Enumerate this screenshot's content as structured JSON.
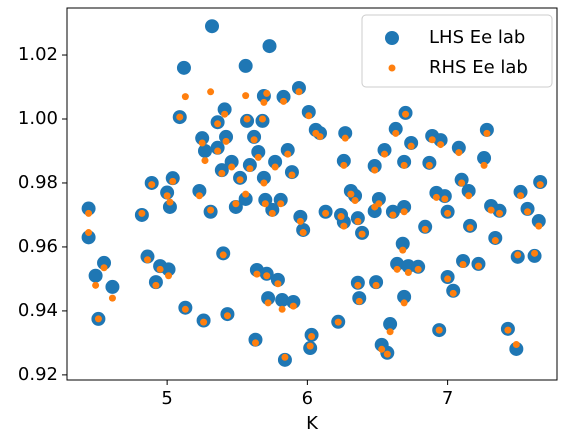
{
  "chart_data": {
    "type": "scatter",
    "x_label": "K",
    "xlim": [
      4.286,
      7.78
    ],
    "ylim": [
      0.9184,
      1.0347
    ],
    "xticks": [
      5,
      6,
      7
    ],
    "yticks": [
      0.92,
      0.94,
      0.96,
      0.98,
      {
        "value": 1.0,
        "label": "1.00"
      },
      1.02
    ],
    "legend": "upper right",
    "series": [
      {
        "name": "LHS Ee lab",
        "color": "#1f77b4",
        "size": 7,
        "x": [
          4.44,
          4.44,
          4.49,
          4.51,
          4.55,
          4.61,
          4.82,
          4.86,
          4.89,
          4.92,
          4.95,
          5.0,
          5.01,
          5.02,
          5.04,
          5.09,
          5.12,
          5.13,
          5.23,
          5.25,
          5.26,
          5.27,
          5.31,
          5.32,
          5.36,
          5.36,
          5.39,
          5.4,
          5.41,
          5.43,
          5.42,
          5.46,
          5.49,
          5.52,
          5.56,
          5.56,
          5.57,
          5.59,
          5.62,
          5.64,
          5.63,
          5.65,
          5.68,
          5.69,
          5.69,
          5.7,
          5.71,
          5.72,
          5.73,
          5.75,
          5.77,
          5.79,
          5.81,
          5.82,
          5.83,
          5.84,
          5.86,
          5.89,
          5.9,
          5.94,
          5.95,
          5.97,
          6.01,
          6.03,
          6.02,
          6.06,
          6.09,
          6.13,
          6.22,
          6.24,
          6.26,
          6.26,
          6.27,
          6.31,
          6.34,
          6.36,
          6.36,
          6.37,
          6.39,
          6.48,
          6.49,
          6.48,
          6.51,
          6.53,
          6.55,
          6.57,
          6.59,
          6.61,
          6.63,
          6.64,
          6.68,
          6.69,
          6.69,
          6.7,
          6.69,
          6.72,
          6.74,
          6.79,
          6.84,
          6.87,
          6.89,
          6.92,
          6.94,
          6.95,
          6.98,
          7.0,
          7.0,
          7.04,
          7.08,
          7.1,
          7.11,
          7.15,
          7.16,
          7.22,
          7.26,
          7.28,
          7.31,
          7.34,
          7.37,
          7.43,
          7.49,
          7.5,
          7.52,
          7.57,
          7.62,
          7.65,
          7.66
        ],
        "values": [
          0.972,
          0.963,
          0.951,
          0.9375,
          0.955,
          0.9475,
          0.97,
          0.957,
          0.98,
          0.949,
          0.954,
          0.977,
          0.953,
          0.9725,
          0.9815,
          1.0006,
          1.016,
          0.941,
          0.9775,
          0.994,
          0.937,
          0.99,
          0.971,
          1.029,
          0.999,
          0.991,
          0.984,
          0.958,
          1.003,
          0.939,
          0.9944,
          0.9866,
          0.9725,
          0.9816,
          1.0166,
          0.975,
          0.9994,
          0.9856,
          0.9944,
          0.9528,
          0.931,
          0.9897,
          0.9994,
          1.0072,
          0.9816,
          0.9747,
          0.9516,
          0.944,
          1.0228,
          0.9716,
          0.9866,
          0.9497,
          0.9747,
          0.9434,
          1.0069,
          0.9247,
          0.9903,
          0.9834,
          0.9428,
          1.0097,
          0.9694,
          0.9653,
          1.0022,
          0.9325,
          0.9284,
          0.9966,
          0.9956,
          0.971,
          0.9366,
          0.97,
          0.9869,
          0.9678,
          0.9956,
          0.9775,
          0.976,
          0.9488,
          0.969,
          0.944,
          0.9644,
          0.9712,
          0.949,
          0.9853,
          0.975,
          0.9294,
          0.9903,
          0.9269,
          0.9359,
          0.971,
          0.9969,
          0.9547,
          0.961,
          0.9725,
          0.9866,
          1.0019,
          0.9444,
          0.954,
          0.9925,
          0.9538,
          0.9663,
          0.9863,
          0.9947,
          0.9769,
          0.934,
          0.9934,
          0.9759,
          0.971,
          0.9506,
          0.9463,
          0.991,
          0.981,
          0.9556,
          0.9775,
          0.9666,
          0.9547,
          0.9878,
          0.9966,
          0.9728,
          0.9628,
          0.9713,
          0.9344,
          0.9281,
          0.9569,
          0.9772,
          0.9719,
          0.9572,
          0.9681,
          0.9803
        ]
      },
      {
        "name": "RHS Ee lab",
        "color": "#ff7f0e",
        "size": 3.5,
        "x": [
          4.44,
          4.44,
          4.49,
          4.51,
          4.55,
          4.61,
          4.82,
          4.86,
          4.89,
          4.92,
          4.95,
          5.0,
          5.01,
          5.02,
          5.04,
          5.09,
          5.13,
          5.13,
          5.23,
          5.25,
          5.26,
          5.27,
          5.31,
          5.31,
          5.36,
          5.36,
          5.39,
          5.4,
          5.41,
          5.43,
          5.42,
          5.46,
          5.49,
          5.52,
          5.56,
          5.56,
          5.57,
          5.59,
          5.62,
          5.64,
          5.63,
          5.65,
          5.68,
          5.69,
          5.69,
          5.7,
          5.71,
          5.72,
          5.71,
          5.75,
          5.77,
          5.79,
          5.81,
          5.82,
          5.83,
          5.84,
          5.86,
          5.89,
          5.9,
          5.94,
          5.95,
          5.97,
          6.01,
          6.03,
          6.02,
          6.06,
          6.09,
          6.13,
          6.22,
          6.24,
          6.26,
          6.26,
          6.27,
          6.31,
          6.34,
          6.36,
          6.36,
          6.37,
          6.39,
          6.48,
          6.49,
          6.48,
          6.51,
          6.53,
          6.55,
          6.57,
          6.59,
          6.61,
          6.63,
          6.64,
          6.68,
          6.69,
          6.69,
          6.7,
          6.69,
          6.72,
          6.74,
          6.79,
          6.84,
          6.87,
          6.89,
          6.92,
          6.94,
          6.95,
          6.98,
          7.0,
          7.0,
          7.04,
          7.08,
          7.1,
          7.11,
          7.15,
          7.16,
          7.22,
          7.26,
          7.28,
          7.31,
          7.34,
          7.37,
          7.43,
          7.49,
          7.5,
          7.52,
          7.57,
          7.62,
          7.65,
          7.66
        ],
        "values": [
          0.9705,
          0.9645,
          0.948,
          0.9375,
          0.9535,
          0.944,
          0.9705,
          0.956,
          0.9795,
          0.948,
          0.953,
          0.976,
          0.951,
          0.974,
          0.9805,
          1.0006,
          1.007,
          0.9405,
          0.976,
          0.9925,
          0.9365,
          0.987,
          0.9715,
          1.0085,
          0.9985,
          0.99,
          0.983,
          0.9575,
          1.0015,
          0.9385,
          0.993,
          0.985,
          0.9735,
          0.981,
          1.0073,
          0.9765,
          1.0,
          0.9845,
          0.9935,
          0.9515,
          0.93,
          0.988,
          1.0,
          1.0052,
          0.98,
          0.9735,
          0.951,
          0.9425,
          1.008,
          0.9705,
          0.985,
          0.9485,
          0.9735,
          0.9405,
          1.0055,
          0.9255,
          0.989,
          0.9825,
          0.9415,
          1.0085,
          0.968,
          0.9645,
          1.001,
          0.932,
          0.929,
          0.9955,
          0.9945,
          0.9705,
          0.9365,
          0.9695,
          0.9855,
          0.9665,
          0.994,
          0.9765,
          0.9745,
          0.948,
          0.968,
          0.943,
          0.964,
          0.9725,
          0.948,
          0.984,
          0.9735,
          0.928,
          0.989,
          0.9265,
          0.9335,
          0.97,
          0.9955,
          0.953,
          0.959,
          0.971,
          0.9855,
          1.0015,
          0.9425,
          0.952,
          0.9915,
          0.953,
          0.9655,
          0.9855,
          0.9935,
          0.9755,
          0.934,
          0.992,
          0.975,
          0.9705,
          0.95,
          0.9455,
          0.9895,
          0.98,
          0.9545,
          0.976,
          0.966,
          0.954,
          0.9855,
          0.9955,
          0.9715,
          0.962,
          0.9705,
          0.934,
          0.9295,
          0.9575,
          0.976,
          0.971,
          0.958,
          0.9665,
          0.9795
        ]
      }
    ]
  }
}
